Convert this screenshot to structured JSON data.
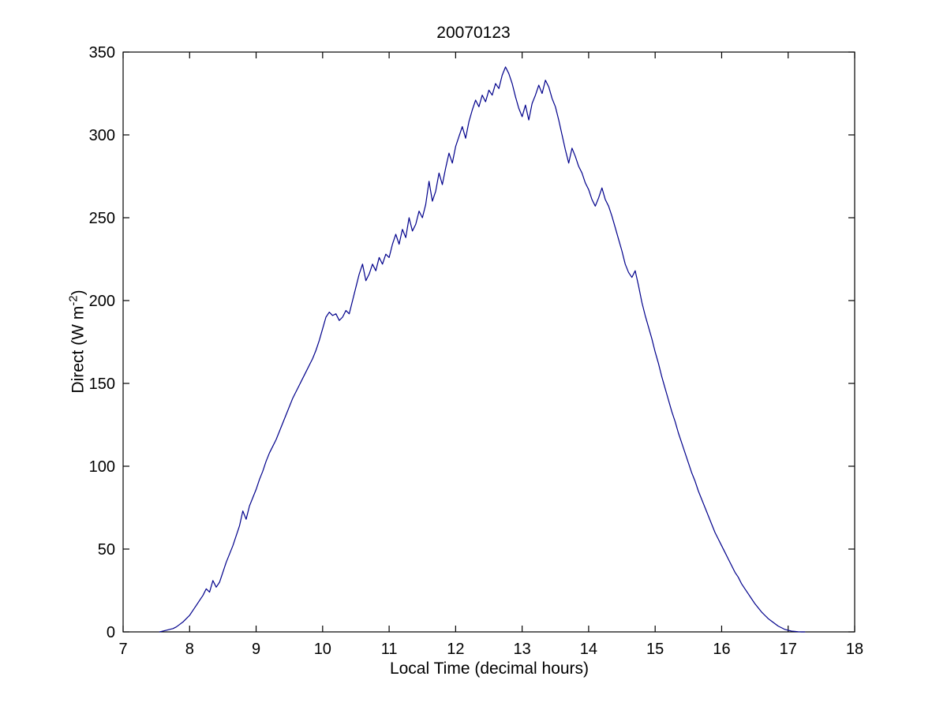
{
  "figure": {
    "background": "#ffffff",
    "axis_color": "#000000",
    "text_color": "#000000"
  },
  "chart_data": {
    "type": "line",
    "title": "20070123",
    "xlabel": "Local Time (decimal hours)",
    "ylabel": "Direct (W m^-2)",
    "ylabel_parts": {
      "prefix": "Direct (W m",
      "sup": "-2",
      "suffix": ")"
    },
    "xlim": [
      7,
      18
    ],
    "ylim": [
      0,
      350
    ],
    "xticks": [
      7,
      8,
      9,
      10,
      11,
      12,
      13,
      14,
      15,
      16,
      17,
      18
    ],
    "yticks": [
      0,
      50,
      100,
      150,
      200,
      250,
      300,
      350
    ],
    "grid": false,
    "legend": null,
    "line_color": "#00008B",
    "series": [
      {
        "name": "Direct",
        "points": [
          [
            7.55,
            0
          ],
          [
            7.6,
            0.5
          ],
          [
            7.65,
            1
          ],
          [
            7.7,
            1.5
          ],
          [
            7.75,
            2
          ],
          [
            7.8,
            3
          ],
          [
            7.85,
            4.5
          ],
          [
            7.9,
            6
          ],
          [
            7.95,
            8
          ],
          [
            8.0,
            10
          ],
          [
            8.05,
            13
          ],
          [
            8.1,
            16
          ],
          [
            8.15,
            19
          ],
          [
            8.2,
            22
          ],
          [
            8.25,
            26
          ],
          [
            8.3,
            24
          ],
          [
            8.35,
            31
          ],
          [
            8.4,
            27
          ],
          [
            8.45,
            30
          ],
          [
            8.5,
            36
          ],
          [
            8.55,
            42
          ],
          [
            8.6,
            47
          ],
          [
            8.65,
            52
          ],
          [
            8.7,
            58
          ],
          [
            8.75,
            64
          ],
          [
            8.8,
            73
          ],
          [
            8.85,
            68
          ],
          [
            8.9,
            76
          ],
          [
            8.95,
            81
          ],
          [
            9.0,
            86
          ],
          [
            9.05,
            92
          ],
          [
            9.1,
            97
          ],
          [
            9.15,
            103
          ],
          [
            9.2,
            108
          ],
          [
            9.25,
            112
          ],
          [
            9.3,
            116
          ],
          [
            9.35,
            121
          ],
          [
            9.4,
            126
          ],
          [
            9.45,
            131
          ],
          [
            9.5,
            136
          ],
          [
            9.55,
            141
          ],
          [
            9.6,
            145
          ],
          [
            9.65,
            149
          ],
          [
            9.7,
            153
          ],
          [
            9.75,
            157
          ],
          [
            9.8,
            161
          ],
          [
            9.85,
            165
          ],
          [
            9.9,
            170
          ],
          [
            9.95,
            176
          ],
          [
            10.0,
            183
          ],
          [
            10.05,
            190
          ],
          [
            10.1,
            193
          ],
          [
            10.15,
            191
          ],
          [
            10.2,
            192
          ],
          [
            10.25,
            188
          ],
          [
            10.3,
            190
          ],
          [
            10.35,
            194
          ],
          [
            10.4,
            192
          ],
          [
            10.45,
            200
          ],
          [
            10.5,
            208
          ],
          [
            10.55,
            216
          ],
          [
            10.6,
            222
          ],
          [
            10.65,
            212
          ],
          [
            10.7,
            216
          ],
          [
            10.75,
            222
          ],
          [
            10.8,
            218
          ],
          [
            10.85,
            226
          ],
          [
            10.9,
            222
          ],
          [
            10.95,
            228
          ],
          [
            11.0,
            226
          ],
          [
            11.05,
            234
          ],
          [
            11.1,
            240
          ],
          [
            11.15,
            234
          ],
          [
            11.2,
            243
          ],
          [
            11.25,
            238
          ],
          [
            11.3,
            250
          ],
          [
            11.35,
            242
          ],
          [
            11.4,
            246
          ],
          [
            11.45,
            254
          ],
          [
            11.5,
            250
          ],
          [
            11.55,
            258
          ],
          [
            11.6,
            272
          ],
          [
            11.65,
            260
          ],
          [
            11.7,
            266
          ],
          [
            11.75,
            277
          ],
          [
            11.8,
            270
          ],
          [
            11.85,
            280
          ],
          [
            11.9,
            289
          ],
          [
            11.95,
            283
          ],
          [
            12.0,
            293
          ],
          [
            12.05,
            299
          ],
          [
            12.1,
            305
          ],
          [
            12.15,
            298
          ],
          [
            12.2,
            308
          ],
          [
            12.25,
            315
          ],
          [
            12.3,
            321
          ],
          [
            12.35,
            317
          ],
          [
            12.4,
            324
          ],
          [
            12.45,
            320
          ],
          [
            12.5,
            327
          ],
          [
            12.55,
            324
          ],
          [
            12.6,
            331
          ],
          [
            12.65,
            328
          ],
          [
            12.7,
            336
          ],
          [
            12.75,
            341
          ],
          [
            12.8,
            337
          ],
          [
            12.85,
            331
          ],
          [
            12.9,
            323
          ],
          [
            12.95,
            316
          ],
          [
            13.0,
            311
          ],
          [
            13.05,
            318
          ],
          [
            13.1,
            309
          ],
          [
            13.15,
            319
          ],
          [
            13.2,
            324
          ],
          [
            13.25,
            330
          ],
          [
            13.3,
            325
          ],
          [
            13.35,
            333
          ],
          [
            13.4,
            329
          ],
          [
            13.45,
            322
          ],
          [
            13.5,
            317
          ],
          [
            13.55,
            309
          ],
          [
            13.6,
            300
          ],
          [
            13.65,
            291
          ],
          [
            13.7,
            283
          ],
          [
            13.75,
            292
          ],
          [
            13.8,
            287
          ],
          [
            13.85,
            281
          ],
          [
            13.9,
            277
          ],
          [
            13.95,
            271
          ],
          [
            14.0,
            267
          ],
          [
            14.05,
            261
          ],
          [
            14.1,
            257
          ],
          [
            14.15,
            262
          ],
          [
            14.2,
            268
          ],
          [
            14.25,
            261
          ],
          [
            14.3,
            257
          ],
          [
            14.35,
            251
          ],
          [
            14.4,
            244
          ],
          [
            14.45,
            237
          ],
          [
            14.5,
            230
          ],
          [
            14.55,
            222
          ],
          [
            14.6,
            217
          ],
          [
            14.65,
            214
          ],
          [
            14.7,
            218
          ],
          [
            14.75,
            209
          ],
          [
            14.8,
            199
          ],
          [
            14.85,
            191
          ],
          [
            14.9,
            184
          ],
          [
            14.95,
            177
          ],
          [
            15.0,
            169
          ],
          [
            15.05,
            162
          ],
          [
            15.1,
            154
          ],
          [
            15.15,
            147
          ],
          [
            15.2,
            140
          ],
          [
            15.25,
            133
          ],
          [
            15.3,
            127
          ],
          [
            15.35,
            120
          ],
          [
            15.4,
            114
          ],
          [
            15.45,
            108
          ],
          [
            15.5,
            102
          ],
          [
            15.55,
            96
          ],
          [
            15.6,
            91
          ],
          [
            15.65,
            85
          ],
          [
            15.7,
            80
          ],
          [
            15.75,
            75
          ],
          [
            15.8,
            70
          ],
          [
            15.85,
            65
          ],
          [
            15.9,
            60
          ],
          [
            15.95,
            56
          ],
          [
            16.0,
            52
          ],
          [
            16.05,
            48
          ],
          [
            16.1,
            44
          ],
          [
            16.15,
            40
          ],
          [
            16.2,
            36
          ],
          [
            16.25,
            33
          ],
          [
            16.3,
            29
          ],
          [
            16.35,
            26
          ],
          [
            16.4,
            23
          ],
          [
            16.45,
            20
          ],
          [
            16.5,
            17
          ],
          [
            16.55,
            14.5
          ],
          [
            16.6,
            12
          ],
          [
            16.65,
            10
          ],
          [
            16.7,
            8
          ],
          [
            16.75,
            6.5
          ],
          [
            16.8,
            5
          ],
          [
            16.85,
            3.5
          ],
          [
            16.9,
            2.5
          ],
          [
            16.95,
            1.5
          ],
          [
            17.0,
            1
          ],
          [
            17.05,
            0.5
          ],
          [
            17.1,
            0.3
          ],
          [
            17.15,
            0.1
          ],
          [
            17.2,
            0
          ],
          [
            17.25,
            0
          ]
        ]
      }
    ]
  }
}
